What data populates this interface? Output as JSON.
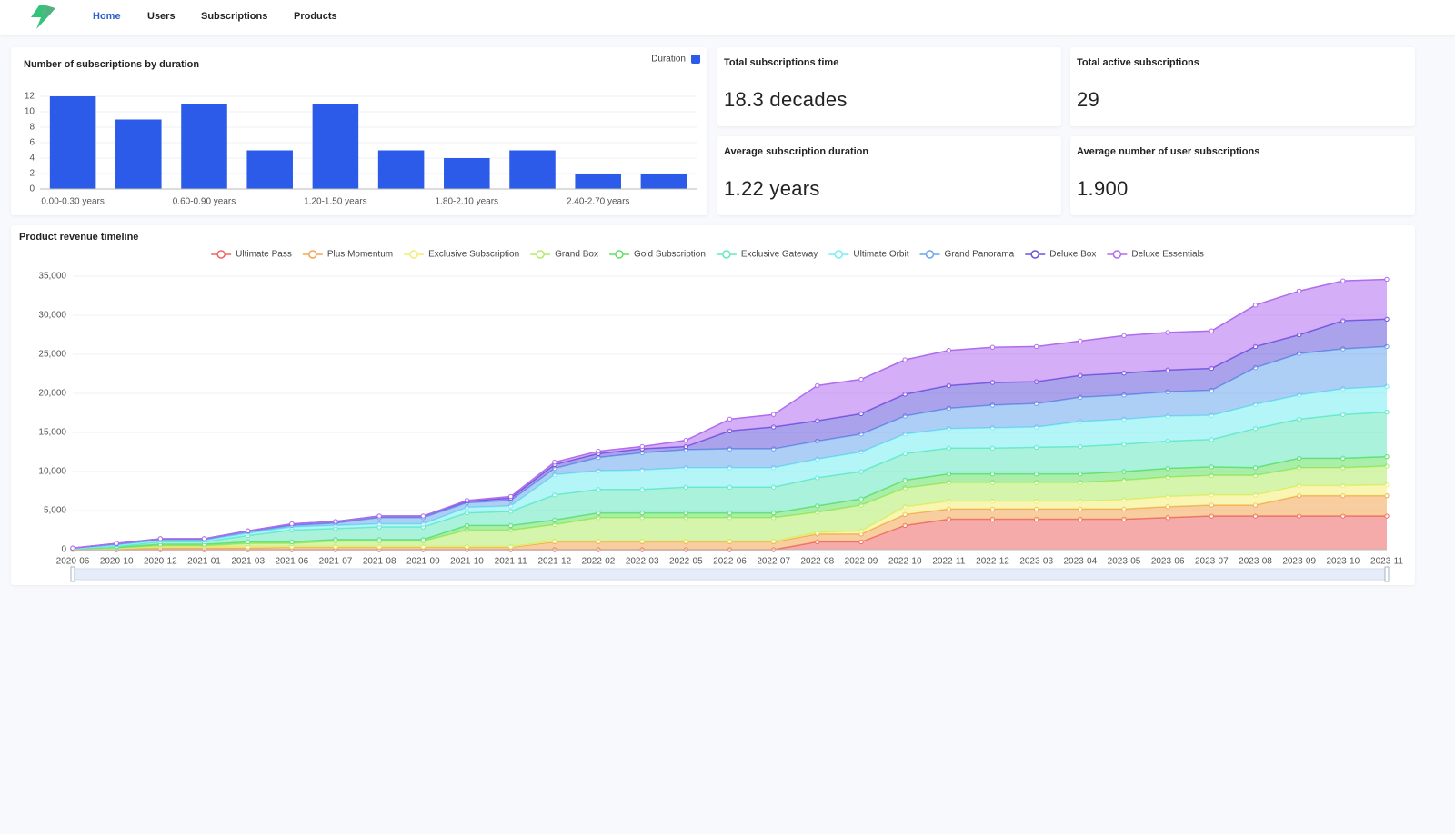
{
  "nav": {
    "links": [
      "Home",
      "Users",
      "Subscriptions",
      "Products"
    ],
    "active": 0
  },
  "stats": [
    {
      "label": "Total subscriptions time",
      "value": "18.3 decades"
    },
    {
      "label": "Total active subscriptions",
      "value": "29"
    },
    {
      "label": "Average subscription duration",
      "value": "1.22 years"
    },
    {
      "label": "Average number of user subscriptions",
      "value": "1.900"
    }
  ],
  "chart_data": [
    {
      "type": "bar",
      "title": "Number of subscriptions by duration",
      "categories": [
        "0.00-0.30 years",
        null,
        "0.60-0.90 years",
        null,
        "1.20-1.50 years",
        null,
        "1.80-2.10 years",
        null,
        "2.40-2.70 years",
        null
      ],
      "series": [
        {
          "name": "Duration",
          "color": "#2b5be8",
          "values": [
            12,
            9,
            11,
            5,
            11,
            5,
            4,
            5,
            2,
            2
          ]
        }
      ],
      "ylim": [
        0,
        12
      ],
      "yticks": [
        0,
        2,
        4,
        6,
        8,
        10,
        12
      ],
      "grid": true,
      "legend": "top-right"
    },
    {
      "type": "area",
      "stacked": true,
      "title": "Product revenue timeline",
      "categories": [
        "2020-06",
        "2020-10",
        "2020-12",
        "2021-01",
        "2021-03",
        "2021-06",
        "2021-07",
        "2021-08",
        "2021-09",
        "2021-10",
        "2021-11",
        "2021-12",
        "2022-02",
        "2022-03",
        "2022-05",
        "2022-06",
        "2022-07",
        "2022-08",
        "2022-09",
        "2022-10",
        "2022-11",
        "2022-12",
        "2023-03",
        "2023-04",
        "2023-05",
        "2023-06",
        "2023-07",
        "2023-08",
        "2023-09",
        "2023-10",
        "2023-11"
      ],
      "series": [
        {
          "name": "Ultimate Pass",
          "color": "#ee6666",
          "values": [
            0,
            0,
            0,
            0,
            0,
            0,
            0,
            0,
            0,
            0,
            0,
            0,
            0,
            0,
            0,
            0,
            0,
            1000,
            1000,
            3100,
            3900,
            3900,
            3900,
            3900,
            3900,
            4100,
            4300,
            4300,
            4300,
            4300,
            4300
          ]
        },
        {
          "name": "Plus Momentum",
          "color": "#f2a654",
          "values": [
            0,
            100,
            200,
            200,
            200,
            300,
            300,
            300,
            300,
            300,
            300,
            1000,
            1000,
            1000,
            1000,
            1000,
            1000,
            1000,
            1000,
            1400,
            1300,
            1300,
            1300,
            1300,
            1300,
            1400,
            1400,
            1400,
            2600,
            2600,
            2600
          ]
        },
        {
          "name": "Exclusive Subscription",
          "color": "#f2ee72",
          "values": [
            0,
            50,
            200,
            200,
            200,
            100,
            100,
            100,
            100,
            100,
            100,
            100,
            100,
            100,
            100,
            100,
            100,
            200,
            400,
            1000,
            1000,
            1000,
            1000,
            1000,
            1200,
            1300,
            1300,
            1300,
            1300,
            1300,
            1400
          ]
        },
        {
          "name": "Grand Box",
          "color": "#b4ec68",
          "values": [
            100,
            50,
            100,
            100,
            400,
            400,
            700,
            700,
            700,
            2100,
            2100,
            2100,
            3000,
            3000,
            3000,
            3000,
            3000,
            2600,
            3300,
            2400,
            2400,
            2400,
            2400,
            2400,
            2500,
            2500,
            2500,
            2500,
            2300,
            2300,
            2400
          ]
        },
        {
          "name": "Gold Subscription",
          "color": "#62e062",
          "values": [
            0,
            100,
            200,
            200,
            200,
            200,
            200,
            200,
            200,
            600,
            600,
            600,
            600,
            600,
            600,
            600,
            600,
            800,
            800,
            1000,
            1100,
            1100,
            1100,
            1100,
            1100,
            1100,
            1100,
            1000,
            1200,
            1200,
            1200
          ]
        },
        {
          "name": "Exclusive Gateway",
          "color": "#66e8c0",
          "values": [
            0,
            100,
            300,
            300,
            800,
            1500,
            1400,
            1600,
            1600,
            1600,
            1800,
            3200,
            3000,
            3000,
            3300,
            3300,
            3300,
            3600,
            3500,
            3400,
            3300,
            3300,
            3400,
            3500,
            3500,
            3500,
            3500,
            5000,
            5000,
            5600,
            5700
          ]
        },
        {
          "name": "Ultimate Orbit",
          "color": "#76eef2",
          "values": [
            50,
            200,
            200,
            200,
            300,
            400,
            400,
            400,
            400,
            700,
            700,
            2600,
            2400,
            2500,
            2500,
            2500,
            2500,
            2400,
            2500,
            2500,
            2500,
            2600,
            2600,
            3200,
            3200,
            3200,
            3100,
            3100,
            3100,
            3300,
            3300
          ]
        },
        {
          "name": "Grand Panorama",
          "color": "#6aa6ec",
          "values": [
            50,
            100,
            100,
            100,
            200,
            200,
            300,
            800,
            800,
            600,
            700,
            800,
            1700,
            2200,
            2300,
            2400,
            2400,
            2300,
            2300,
            2300,
            2600,
            2900,
            3000,
            3100,
            3100,
            3100,
            3200,
            4700,
            5300,
            5100,
            5100
          ]
        },
        {
          "name": "Deluxe Box",
          "color": "#6656dc",
          "values": [
            0,
            100,
            100,
            100,
            100,
            200,
            200,
            200,
            200,
            200,
            300,
            500,
            500,
            500,
            400,
            2300,
            2800,
            2600,
            2600,
            2800,
            2900,
            2900,
            2800,
            2800,
            2800,
            2800,
            2800,
            2700,
            2400,
            3600,
            3500
          ]
        },
        {
          "name": "Deluxe Essentials",
          "color": "#b06cee",
          "values": [
            0,
            0,
            0,
            0,
            0,
            0,
            0,
            0,
            0,
            100,
            200,
            300,
            300,
            300,
            800,
            1500,
            1600,
            4500,
            4400,
            4400,
            4500,
            4500,
            4500,
            4400,
            4800,
            4800,
            4800,
            5300,
            5600,
            5100,
            5100
          ]
        }
      ],
      "ylim": [
        0,
        35000
      ],
      "yticks": [
        0,
        {
          "value": 5000,
          "label": "5,000"
        },
        {
          "value": 10000,
          "label": "10,000"
        },
        {
          "value": 15000,
          "label": "15,000"
        },
        {
          "value": 20000,
          "label": "20,000"
        },
        {
          "value": 25000,
          "label": "25,000"
        },
        {
          "value": 30000,
          "label": "30,000"
        },
        {
          "value": 35000,
          "label": "35,000"
        }
      ],
      "grid": true,
      "legend": "top"
    }
  ]
}
